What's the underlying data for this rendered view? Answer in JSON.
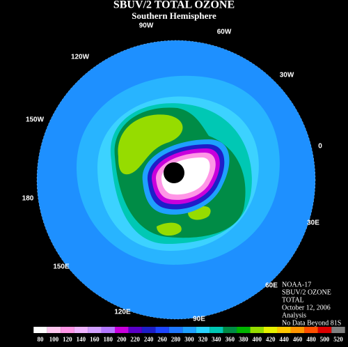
{
  "header": {
    "title": "SBUV/2 TOTAL OZONE",
    "subtitle": "Southern Hemisphere"
  },
  "longitudes": [
    "90W",
    "60W",
    "120W",
    "30W",
    "150W",
    "0",
    "180",
    "30E",
    "150E",
    "60E",
    "120E",
    "90E"
  ],
  "info": [
    "NOAA-17",
    "SBUV/2 OZONE",
    "TOTAL",
    "October 12, 2006",
    "Analysis",
    "No Data Beyond 81S"
  ],
  "colorbar": {
    "labels": [
      "80",
      "100",
      "120",
      "140",
      "160",
      "180",
      "200",
      "220",
      "240",
      "260",
      "280",
      "300",
      "320",
      "340",
      "360",
      "380",
      "400",
      "420",
      "440",
      "460",
      "480",
      "500",
      "520"
    ],
    "colors": [
      "#ffffff",
      "#ffc8f0",
      "#ff96e6",
      "#f0b4ff",
      "#d2a0ff",
      "#b478ff",
      "#c800dc",
      "#5a00c8",
      "#1e1ec8",
      "#1e46ff",
      "#1e78ff",
      "#1ea0ff",
      "#28d2ff",
      "#00c8b4",
      "#008c46",
      "#00b400",
      "#96dc00",
      "#e6f000",
      "#ffc800",
      "#ff9600",
      "#ff5000",
      "#dc0000",
      "#808080"
    ]
  }
}
